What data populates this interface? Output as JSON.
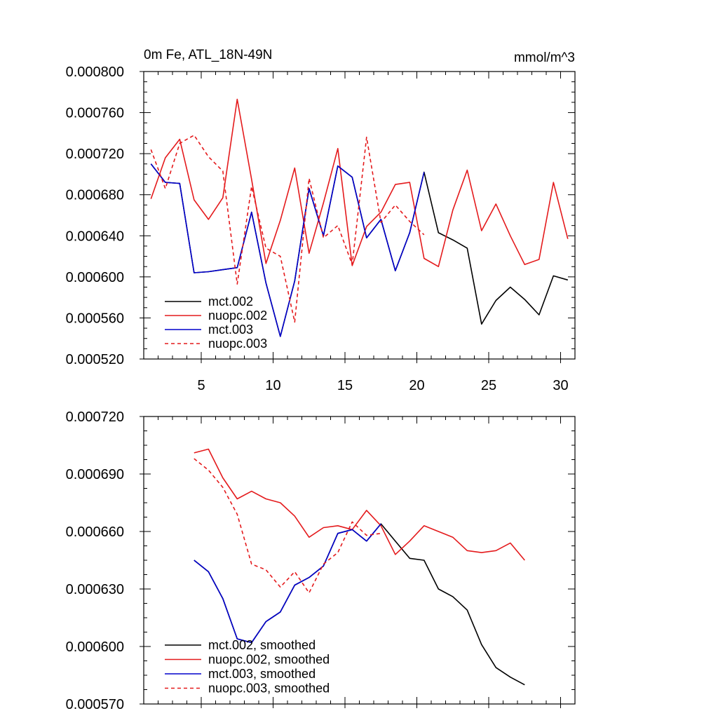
{
  "chart_data": [
    {
      "type": "line",
      "title": "0m Fe, ATL_18N-49N",
      "units": "mmol/m^3",
      "xlim": [
        1,
        31
      ],
      "ylim": [
        0.00052,
        0.0008
      ],
      "x_ticks": [
        5,
        10,
        15,
        20,
        25,
        30
      ],
      "x_tick_labels": [
        "5",
        "10",
        "15",
        "20",
        "25",
        "30"
      ],
      "y_ticks": [
        0.00052,
        0.00056,
        0.0006,
        0.00064,
        0.00068,
        0.00072,
        0.00076,
        0.0008
      ],
      "y_tick_labels": [
        "0.000520",
        "0.000560",
        "0.000600",
        "0.000640",
        "0.000680",
        "0.000720",
        "0.000760",
        "0.000800"
      ],
      "legend_position": "bottom-left",
      "series": [
        {
          "name": "mct.002",
          "color": "#000000",
          "dash": "solid",
          "x": [
            1.5,
            2.5,
            3.5,
            4.5,
            5.5,
            6.5,
            7.5,
            8.5,
            9.5,
            10.5,
            11.5,
            12.5,
            13.5,
            14.5,
            15.5,
            16.5,
            17.5,
            18.5,
            19.5,
            20.5,
            21.5,
            22.5,
            23.5,
            24.5,
            25.5,
            26.5,
            27.5,
            28.5,
            29.5,
            30.5
          ],
          "y": [
            0.00071,
            0.000692,
            0.000691,
            0.000604,
            0.000605,
            0.000607,
            0.000609,
            0.000663,
            0.000594,
            0.000542,
            0.000596,
            0.000686,
            0.00064,
            0.000708,
            0.000697,
            0.000638,
            0.000656,
            0.000606,
            0.000643,
            0.000702,
            0.000643,
            0.000636,
            0.000628,
            0.000554,
            0.000577,
            0.00059,
            0.000578,
            0.000563,
            0.000601,
            0.000597
          ]
        },
        {
          "name": "nuopc.002",
          "color": "#e41a1c",
          "dash": "solid",
          "x": [
            1.5,
            2.5,
            3.5,
            4.5,
            5.5,
            6.5,
            7.5,
            8.5,
            9.5,
            10.5,
            11.5,
            12.5,
            13.5,
            14.5,
            15.5,
            16.5,
            17.5,
            18.5,
            19.5,
            20.5,
            21.5,
            22.5,
            23.5,
            24.5,
            25.5,
            26.5,
            27.5,
            28.5,
            29.5,
            30.5
          ],
          "y": [
            0.000676,
            0.000716,
            0.000734,
            0.000675,
            0.000656,
            0.000677,
            0.000773,
            0.000695,
            0.000613,
            0.000655,
            0.000706,
            0.000623,
            0.000672,
            0.000725,
            0.000611,
            0.000649,
            0.000663,
            0.00069,
            0.000692,
            0.000618,
            0.00061,
            0.000665,
            0.000704,
            0.000645,
            0.000671,
            0.00064,
            0.000612,
            0.000617,
            0.000692,
            0.000637
          ]
        },
        {
          "name": "mct.003",
          "color": "#0000cc",
          "dash": "solid",
          "x": [
            1.5,
            2.5,
            3.5,
            4.5,
            5.5,
            6.5,
            7.5,
            8.5,
            9.5,
            10.5,
            11.5,
            12.5,
            13.5,
            14.5,
            15.5,
            16.5,
            17.5,
            18.5,
            19.5,
            20.5
          ],
          "y": [
            0.00071,
            0.000692,
            0.000691,
            0.000604,
            0.000605,
            0.000607,
            0.000609,
            0.000663,
            0.000594,
            0.000542,
            0.000596,
            0.000686,
            0.00064,
            0.000708,
            0.000697,
            0.000638,
            0.000656,
            0.000606,
            0.000643,
            0.000702
          ]
        },
        {
          "name": "nuopc.003",
          "color": "#e41a1c",
          "dash": "dashed",
          "x": [
            1.5,
            2.5,
            3.5,
            4.5,
            5.5,
            6.5,
            7.5,
            8.5,
            9.5,
            10.5,
            11.5,
            12.5,
            13.5,
            14.5,
            15.5,
            16.5,
            17.5,
            18.5,
            19.5,
            20.5
          ],
          "y": [
            0.000724,
            0.000686,
            0.00073,
            0.000738,
            0.000717,
            0.000703,
            0.000593,
            0.000688,
            0.000628,
            0.00062,
            0.000556,
            0.000696,
            0.000638,
            0.00065,
            0.000612,
            0.000736,
            0.000653,
            0.00067,
            0.000654,
            0.000641
          ]
        }
      ]
    },
    {
      "type": "line",
      "xlim": [
        1,
        31
      ],
      "ylim": [
        0.00057,
        0.00072
      ],
      "x_ticks": [
        5,
        10,
        15,
        20,
        25,
        30
      ],
      "y_ticks": [
        0.00057,
        0.0006,
        0.00063,
        0.00066,
        0.00069,
        0.00072
      ],
      "y_tick_labels": [
        "0.000570",
        "0.000600",
        "0.000630",
        "0.000660",
        "0.000690",
        "0.000720"
      ],
      "legend_position": "bottom-left",
      "series": [
        {
          "name": "mct.002, smoothed",
          "color": "#000000",
          "dash": "solid",
          "x": [
            4.5,
            5.5,
            6.5,
            7.5,
            8.5,
            9.5,
            10.5,
            11.5,
            12.5,
            13.5,
            14.5,
            15.5,
            16.5,
            17.5,
            18.5,
            19.5,
            20.5,
            21.5,
            22.5,
            23.5,
            24.5,
            25.5,
            26.5,
            27.5
          ],
          "y": [
            0.000645,
            0.000639,
            0.000625,
            0.000604,
            0.000602,
            0.000613,
            0.000618,
            0.000632,
            0.000636,
            0.000642,
            0.000659,
            0.000661,
            0.000655,
            0.000664,
            0.000655,
            0.000646,
            0.000645,
            0.00063,
            0.000626,
            0.000619,
            0.000601,
            0.000589,
            0.000584,
            0.00058
          ]
        },
        {
          "name": "nuopc.002, smoothed",
          "color": "#e41a1c",
          "dash": "solid",
          "x": [
            4.5,
            5.5,
            6.5,
            7.5,
            8.5,
            9.5,
            10.5,
            11.5,
            12.5,
            13.5,
            14.5,
            15.5,
            16.5,
            17.5,
            18.5,
            19.5,
            20.5,
            21.5,
            22.5,
            23.5,
            24.5,
            25.5,
            26.5,
            27.5
          ],
          "y": [
            0.000701,
            0.000703,
            0.000688,
            0.000677,
            0.000681,
            0.000677,
            0.000675,
            0.000668,
            0.000657,
            0.000662,
            0.000663,
            0.000661,
            0.000671,
            0.000663,
            0.000648,
            0.000655,
            0.000663,
            0.00066,
            0.000657,
            0.00065,
            0.000649,
            0.00065,
            0.000654,
            0.000645
          ]
        },
        {
          "name": "mct.003, smoothed",
          "color": "#0000cc",
          "dash": "solid",
          "x": [
            4.5,
            5.5,
            6.5,
            7.5,
            8.5,
            9.5,
            10.5,
            11.5,
            12.5,
            13.5,
            14.5,
            15.5,
            16.5,
            17.5
          ],
          "y": [
            0.000645,
            0.000639,
            0.000625,
            0.000604,
            0.000602,
            0.000613,
            0.000618,
            0.000632,
            0.000636,
            0.000642,
            0.000659,
            0.000661,
            0.000655,
            0.000664
          ]
        },
        {
          "name": "nuopc.003, smoothed",
          "color": "#e41a1c",
          "dash": "dashed",
          "x": [
            4.5,
            5.5,
            6.5,
            7.5,
            8.5,
            9.5,
            10.5,
            11.5,
            12.5,
            13.5,
            14.5,
            15.5,
            16.5,
            17.5
          ],
          "y": [
            0.000698,
            0.000692,
            0.000683,
            0.000669,
            0.000643,
            0.00064,
            0.000631,
            0.000639,
            0.000628,
            0.000643,
            0.000649,
            0.000665,
            0.000658,
            0.000659
          ]
        }
      ]
    }
  ]
}
